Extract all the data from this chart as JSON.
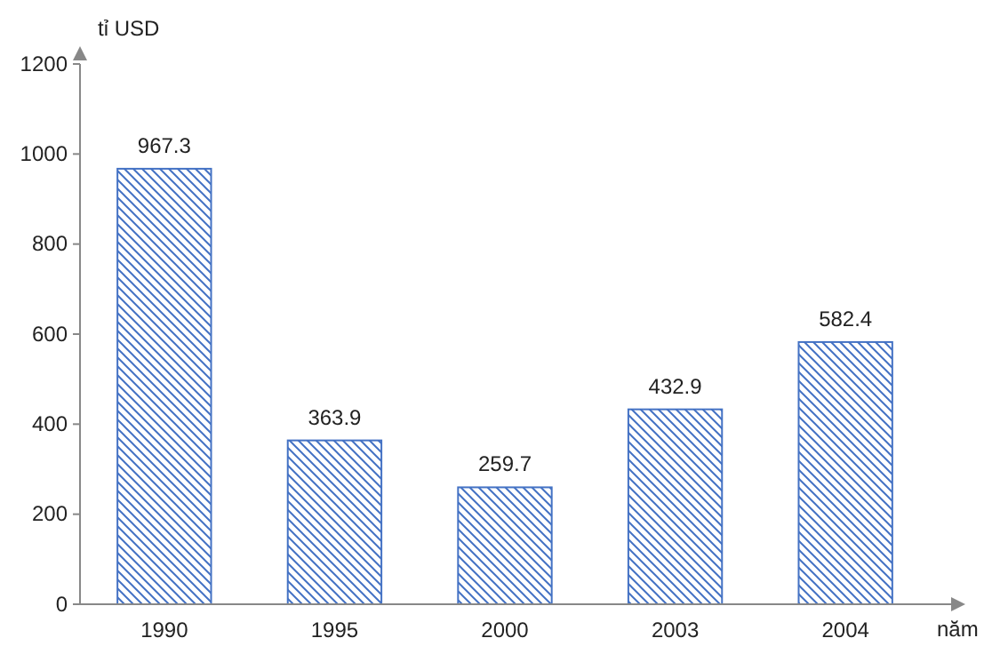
{
  "chart_data": {
    "type": "bar",
    "ylabel": "tỉ USD",
    "xlabel": "năm",
    "categories": [
      "1990",
      "1995",
      "2000",
      "2003",
      "2004"
    ],
    "values": [
      967.3,
      363.9,
      259.7,
      432.9,
      582.4
    ],
    "color": "#4472c4",
    "ylim": [
      0,
      1200
    ],
    "yticks": [
      0,
      200,
      400,
      600,
      800,
      1000,
      1200
    ],
    "data_labels": true,
    "grid": false
  }
}
